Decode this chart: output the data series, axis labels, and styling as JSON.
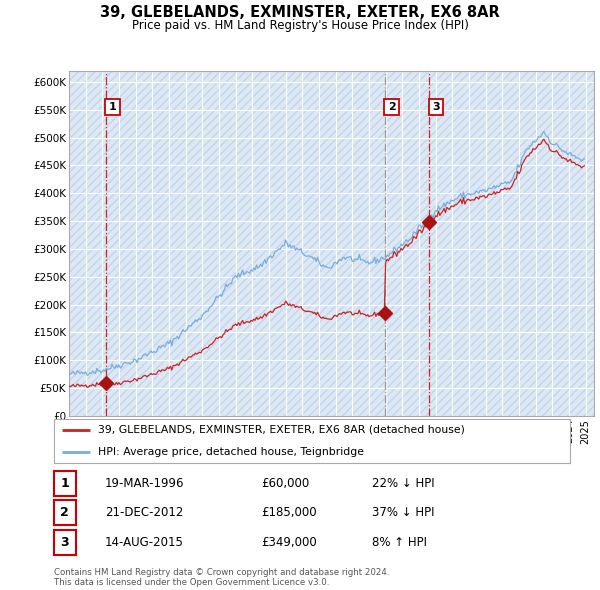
{
  "title": "39, GLEBELANDS, EXMINSTER, EXETER, EX6 8AR",
  "subtitle": "Price paid vs. HM Land Registry's House Price Index (HPI)",
  "xlim_start": 1994.0,
  "xlim_end": 2025.5,
  "ylim_min": 0,
  "ylim_max": 620000,
  "yticks": [
    0,
    50000,
    100000,
    150000,
    200000,
    250000,
    300000,
    350000,
    400000,
    450000,
    500000,
    550000,
    600000
  ],
  "ytick_labels": [
    "£0",
    "£50K",
    "£100K",
    "£150K",
    "£200K",
    "£250K",
    "£300K",
    "£350K",
    "£400K",
    "£450K",
    "£500K",
    "£550K",
    "£600K"
  ],
  "sale_dates": [
    1996.22,
    2012.97,
    2015.62
  ],
  "sale_prices": [
    60000,
    185000,
    349000
  ],
  "sale_labels": [
    "1",
    "2",
    "3"
  ],
  "sale_vline_colors": [
    "#cc0000",
    "#888888",
    "#cc0000"
  ],
  "sale_vline_styles": [
    "--",
    "--",
    "--"
  ],
  "hpi_line_color": "#7aaddc",
  "price_line_color": "#cc2222",
  "sale_dot_color": "#aa1111",
  "bg_color": "#dce8f5",
  "hatch_color": "#c5d5e8",
  "grid_color": "#ffffff",
  "legend_entries": [
    "39, GLEBELANDS, EXMINSTER, EXETER, EX6 8AR (detached house)",
    "HPI: Average price, detached house, Teignbridge"
  ],
  "table_rows": [
    [
      "1",
      "19-MAR-1996",
      "£60,000",
      "22% ↓ HPI"
    ],
    [
      "2",
      "21-DEC-2012",
      "£185,000",
      "37% ↓ HPI"
    ],
    [
      "3",
      "14-AUG-2015",
      "£349,000",
      "8% ↑ HPI"
    ]
  ],
  "footnote": "Contains HM Land Registry data © Crown copyright and database right 2024.\nThis data is licensed under the Open Government Licence v3.0."
}
